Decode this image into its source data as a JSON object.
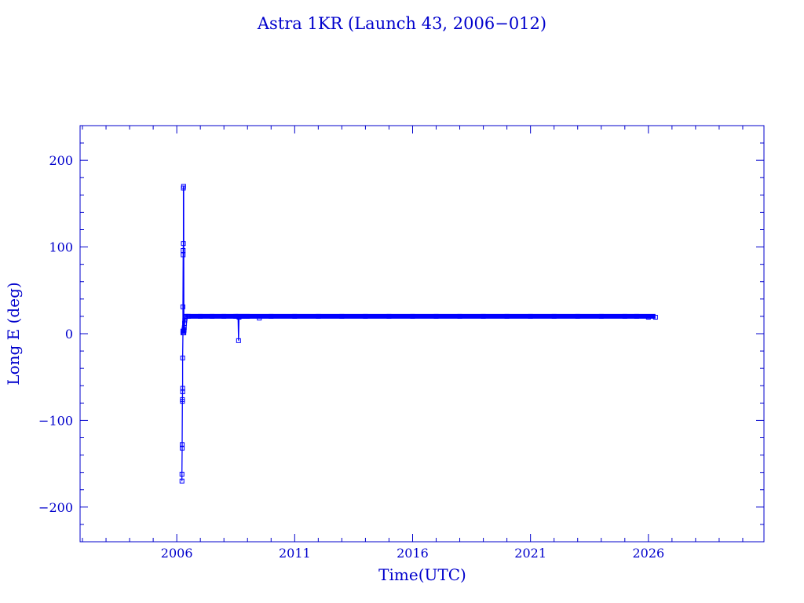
{
  "chart_data": {
    "type": "line",
    "title": "Astra 1KR (Launch 43, 2006−012)",
    "xlabel": "Time(UTC)",
    "ylabel": "Long E (deg)",
    "xlim": [
      2001.9,
      2030.9
    ],
    "ylim": [
      -240,
      240
    ],
    "x_ticks": [
      2006,
      2011,
      2016,
      2021,
      2026
    ],
    "y_ticks": [
      200,
      100,
      0,
      -100,
      -200
    ],
    "x_tick_labels": [
      "2006",
      "2011",
      "2016",
      "2021",
      "2026"
    ],
    "y_tick_labels": [
      "200",
      "100",
      "0",
      "−100",
      "−200"
    ],
    "grid": false,
    "colors": {
      "axis": "#0000cc",
      "series": "#0000ff"
    },
    "series": [
      {
        "x": [
          2006.22,
          2006.22,
          2006.23,
          2006.23,
          2006.24,
          2006.24,
          2006.25,
          2006.25,
          2006.25,
          2006.26,
          2006.26,
          2006.26,
          2006.27,
          2006.27,
          2006.28,
          2006.28,
          2006.29,
          2006.3,
          2006.3,
          2006.31,
          2006.31,
          2006.32,
          2006.33,
          2006.34,
          2006.35,
          2006.36,
          2006.38,
          2006.4,
          2006.45,
          2006.5,
          2007.0,
          2007.5,
          2008.0,
          2008.5,
          2008.6,
          2008.62,
          2008.64,
          2008.8,
          2009.0,
          2009.5,
          2010.0,
          2011.0,
          2012.0,
          2013.0,
          2014.0,
          2015.0,
          2016.0,
          2017.0,
          2018.0,
          2019.0,
          2020.0,
          2021.0,
          2022.0,
          2023.0,
          2024.0,
          2025.0,
          2025.5,
          2026.0,
          2026.3
        ],
        "y": [
          -170,
          -162,
          -132,
          -128,
          -78,
          -76,
          -67,
          -63,
          -28,
          1,
          3,
          31,
          91,
          96,
          104,
          168,
          170,
          3,
          1,
          5,
          4,
          7,
          12,
          15,
          17,
          19,
          20,
          20,
          20,
          20,
          20,
          20,
          20,
          20,
          20,
          -8,
          19,
          20,
          20,
          18,
          20,
          20,
          20,
          20,
          20,
          20,
          20,
          20,
          20,
          20,
          20,
          20,
          20,
          20,
          20,
          20,
          20,
          19,
          19
        ]
      }
    ]
  }
}
